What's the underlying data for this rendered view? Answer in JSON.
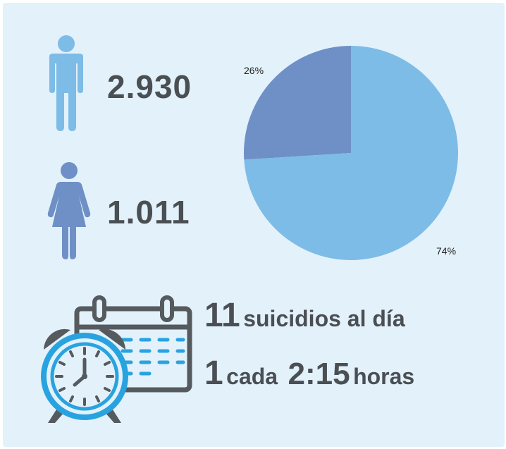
{
  "stats": {
    "male": {
      "value": "2.930",
      "icon": "male-person-icon"
    },
    "female": {
      "value": "1.011",
      "icon": "female-person-icon"
    }
  },
  "chart_data": {
    "type": "pie",
    "slices": [
      {
        "label": "26%",
        "value": 26,
        "color": "#6e90c6"
      },
      {
        "label": "74%",
        "value": 74,
        "color": "#7dbce6"
      }
    ]
  },
  "summary": {
    "per_day_number": "11",
    "per_day_text": "suicidios al día",
    "every_number": "1",
    "every_word": "cada",
    "every_time": "2:15",
    "every_unit": "horas"
  },
  "icons": {
    "calendar": "calendar-icon",
    "clock": "alarm-clock-icon"
  },
  "colors": {
    "background": "#e3f1fb",
    "male": "#7dbce6",
    "female": "#6e90c6",
    "text": "#4a4f54",
    "clock": "#29a3e0",
    "calendar": "#555a5f",
    "calendar_marks": "#29a3e0"
  }
}
